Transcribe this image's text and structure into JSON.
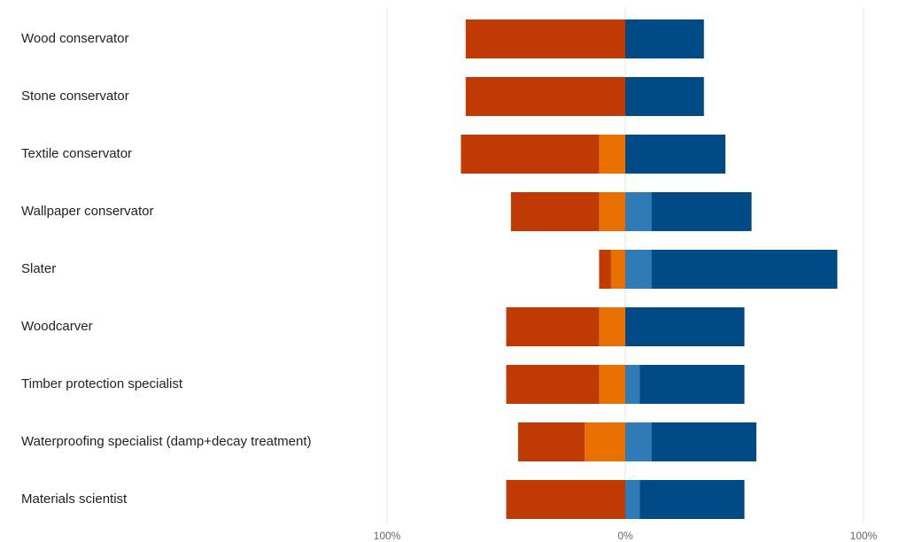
{
  "chart_data": {
    "type": "bar",
    "orientation": "horizontal",
    "stacked": "diverging",
    "categories": [
      "Wood conservator",
      "Stone conservator",
      "Textile conservator",
      "Wallpaper conservator",
      "Slater",
      "Woodcarver",
      "Timber protection specialist",
      "Waterproofing specialist (damp+decay treatment)",
      "Materials scientist"
    ],
    "series": [
      {
        "side": "negative",
        "color": "#bf3b03",
        "values": [
          67,
          67,
          58,
          37,
          5,
          39,
          39,
          28,
          50
        ]
      },
      {
        "side": "negative",
        "color": "#e86f00",
        "values": [
          0,
          0,
          11,
          11,
          6,
          11,
          11,
          17,
          0
        ]
      },
      {
        "side": "positive",
        "color": "#2e7bb8",
        "values": [
          0,
          0,
          0,
          11,
          11,
          0,
          6,
          11,
          6
        ]
      },
      {
        "side": "positive",
        "color": "#004a85",
        "values": [
          33,
          33,
          42,
          42,
          78,
          50,
          44,
          44,
          44
        ]
      }
    ],
    "xlim": [
      -100,
      100
    ],
    "x_ticks": [
      {
        "value": -100,
        "label": "100%"
      },
      {
        "value": 0,
        "label": "0%"
      },
      {
        "value": 100,
        "label": "100%"
      }
    ],
    "grid": true,
    "legend": "none"
  }
}
